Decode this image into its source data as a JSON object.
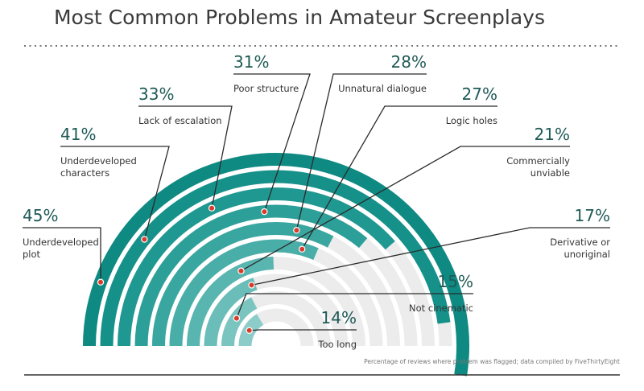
{
  "chart_data": {
    "type": "radial-bar",
    "title": "Most Common Problems in Amateur Screenplays",
    "footnote": "Percentage of reviews where problem was flagged; data compiled by FiveThirtyEight",
    "unit": "%",
    "max": 50,
    "categories": [
      "Underdeveloped plot",
      "Underdeveloped characters",
      "Lack of escalation",
      "Poor structure",
      "Unnatural dialogue",
      "Logic holes",
      "Commercially unviable",
      "Derivative or unoriginal",
      "Not cinematic",
      "Too long"
    ],
    "values": [
      45,
      41,
      33,
      31,
      28,
      27,
      21,
      17,
      15,
      14
    ],
    "label_lines": [
      [
        "Underdeveloped",
        "plot"
      ],
      [
        "Underdeveloped",
        "characters"
      ],
      [
        "Lack of escalation"
      ],
      [
        "Poor structure"
      ],
      [
        "Unnatural dialogue"
      ],
      [
        "Logic holes"
      ],
      [
        "Commercially",
        "unviable"
      ],
      [
        "Derivative or",
        "unoriginal"
      ],
      [
        "Not cinematic"
      ],
      [
        "Too long"
      ]
    ],
    "pct_labels": [
      "45%",
      "41%",
      "33%",
      "31%",
      "28%",
      "27%",
      "21%",
      "17%",
      "15%",
      "14%"
    ],
    "colors": {
      "bars": [
        "#0f8a83",
        "#15918a",
        "#209892",
        "#2c9f99",
        "#3aa6a0",
        "#49ada8",
        "#59b5b0",
        "#6abdb8",
        "#7bc5c0",
        "#8dcdc9"
      ],
      "track": "#ececec",
      "marker": "#d93b2b",
      "leader": "#2b2b2b",
      "text": "#333333",
      "pct_text": "#1e5a56"
    }
  }
}
